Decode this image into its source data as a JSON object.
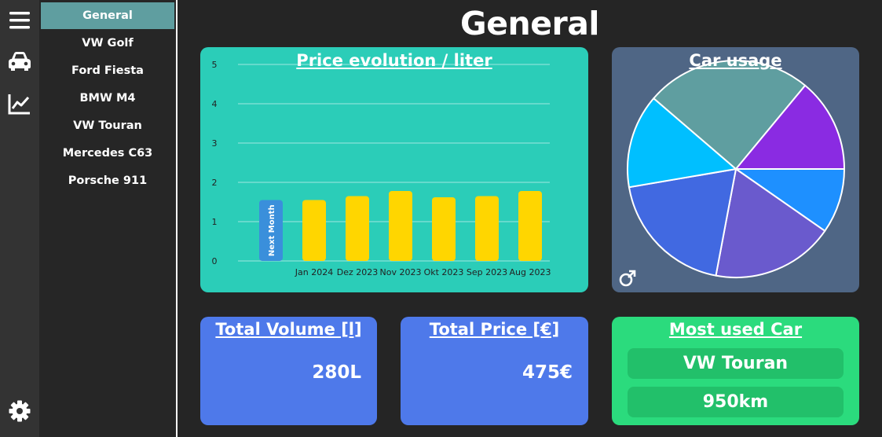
{
  "nav": {
    "items": [
      {
        "label": "General",
        "active": true
      },
      {
        "label": "VW Golf"
      },
      {
        "label": "Ford Fiesta"
      },
      {
        "label": "BMW M4"
      },
      {
        "label": "VW Touran"
      },
      {
        "label": "Mercedes C63"
      },
      {
        "label": "Porsche 911"
      }
    ]
  },
  "rail": {
    "icons": [
      "menu-icon",
      "car-icon",
      "chart-icon",
      "gear-icon"
    ]
  },
  "page": {
    "title": "General"
  },
  "price_chart": {
    "title": "Price evolution / liter",
    "chart_data": {
      "type": "bar",
      "categories": [
        "Jan 2024",
        "Dez 2023",
        "Nov 2023",
        "Okt 2023",
        "Sep 2023",
        "Aug 2023"
      ],
      "values": [
        1.55,
        1.65,
        1.78,
        1.62,
        1.65,
        1.78
      ],
      "extra_bar": {
        "label": "Next Month",
        "value": 1.55,
        "color": "#3a8fdb"
      },
      "ylim": [
        0,
        5
      ],
      "yticks": [
        "0",
        "1",
        "2",
        "3",
        "4",
        "5"
      ],
      "bar_color": "#ffd600",
      "grid": true
    }
  },
  "usage_chart": {
    "title": "Car usage",
    "chart_data": {
      "type": "pie",
      "slices": [
        {
          "value": 9,
          "color": "#1e90ff"
        },
        {
          "value": 17,
          "color": "#6a5acd"
        },
        {
          "value": 18,
          "color": "#4169e1"
        },
        {
          "value": 13,
          "color": "#00bfff"
        },
        {
          "value": 23,
          "color": "#5f9ea0"
        },
        {
          "value": 13,
          "color": "#8a2be2"
        }
      ]
    }
  },
  "stats": {
    "volume": {
      "title": "Total Volume [l]",
      "value": "280L"
    },
    "price": {
      "title": "Total Price [€]",
      "value": "475€"
    },
    "car": {
      "title": "Most used Car",
      "name": "VW Touran",
      "distance": "950km"
    }
  },
  "colors": {
    "accent_teal": "#2bcdb8",
    "stat_blue": "#4e79ea",
    "car_green": "#2bdb7d",
    "nav_active": "#5f9ea0"
  }
}
